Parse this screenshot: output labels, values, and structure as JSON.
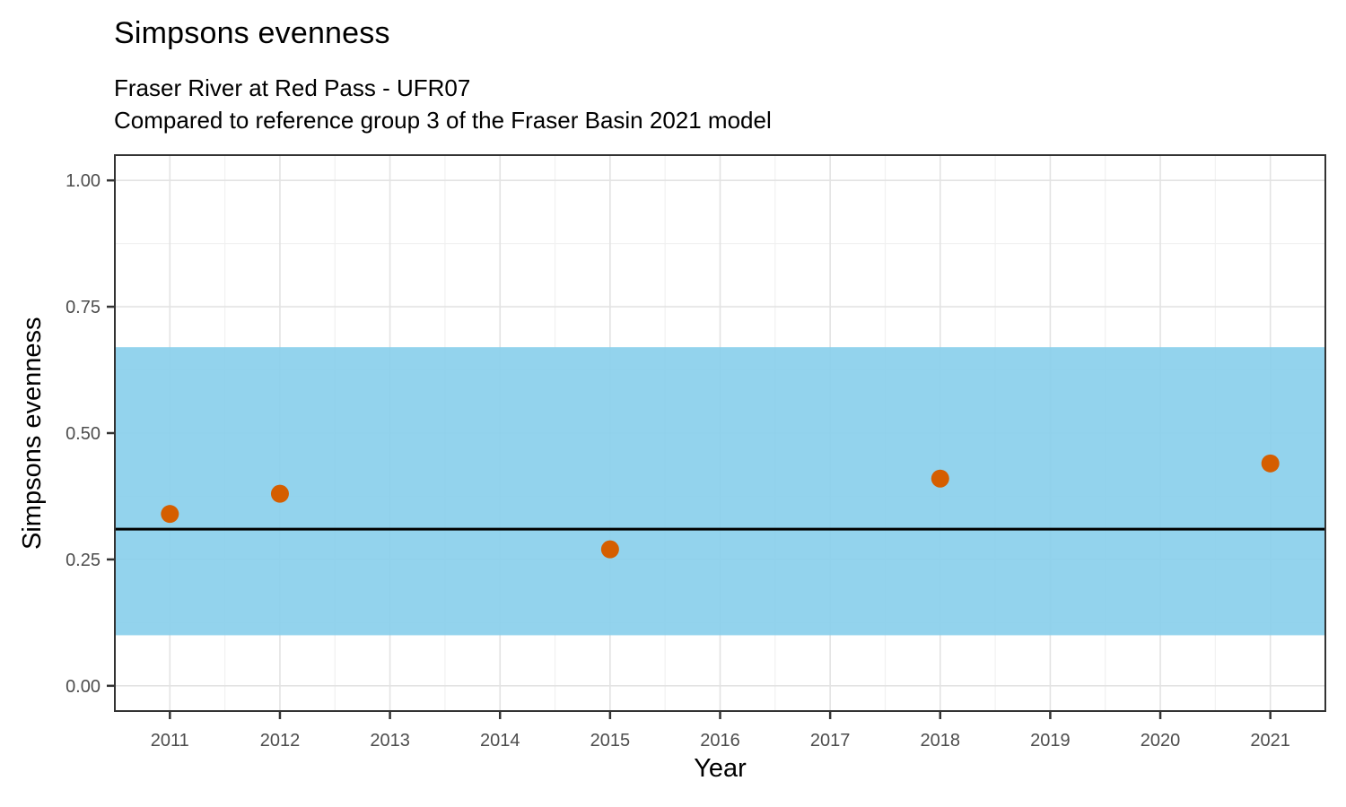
{
  "chart_data": {
    "type": "scatter",
    "title": "Simpsons evenness",
    "subtitle_line1": "Fraser River at Red Pass - UFR07",
    "subtitle_line2": "Compared to reference group 3 of the Fraser Basin 2021 model",
    "xlabel": "Year",
    "ylabel": "Simpsons evenness",
    "points": {
      "x": [
        2011,
        2012,
        2015,
        2018,
        2021
      ],
      "y": [
        0.34,
        0.38,
        0.27,
        0.41,
        0.44
      ]
    },
    "reference_band": {
      "ymin": 0.1,
      "ymax": 0.67
    },
    "reference_line": {
      "y": 0.31
    },
    "x_ticks": [
      2011,
      2012,
      2013,
      2014,
      2015,
      2016,
      2017,
      2018,
      2019,
      2020,
      2021
    ],
    "x_tick_labels": [
      "2011",
      "2012",
      "2013",
      "2014",
      "2015",
      "2016",
      "2017",
      "2018",
      "2019",
      "2020",
      "2021"
    ],
    "y_ticks": [
      0.0,
      0.25,
      0.5,
      0.75,
      1.0
    ],
    "y_tick_labels": [
      "0.00",
      "0.25",
      "0.50",
      "0.75",
      "1.00"
    ],
    "xlim": [
      2010.5,
      2021.5
    ],
    "ylim": [
      -0.05,
      1.05
    ],
    "grid": "major and minor, light gray on white panel",
    "legend": "none",
    "colors": {
      "point": "#D55E00",
      "band": "#87CEEB",
      "line": "#000000",
      "grid_major": "#E3E3E3",
      "grid_minor": "#F1F1F1",
      "axis_text": "#4D4D4D",
      "tick_mark": "#333333",
      "panel_border": "#333333",
      "background": "#FFFFFF"
    }
  }
}
